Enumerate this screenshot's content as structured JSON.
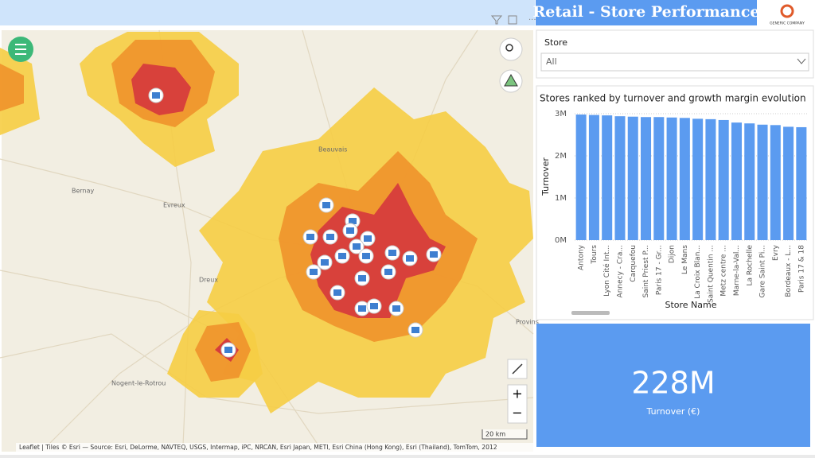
{
  "header": {
    "title": "Retail - Store Performance",
    "logo": "GENERIC COMPANY"
  },
  "slicer": {
    "label": "Store",
    "value": "All"
  },
  "map": {
    "places": [
      "Beauvais",
      "Evreux",
      "Bernay",
      "Nogent-le-Rotrou",
      "Provins",
      "Dreux"
    ],
    "scale": "20 km",
    "zoom_in": "+",
    "zoom_out": "−",
    "attribution": "Leaflet | Tiles © Esri — Source: Esri, DeLorme, NAVTEQ, USGS, Intermap, iPC, NRCAN, Esri Japan, METI, Esri China (Hong Kong), Esri (Thailand), TomTom, 2012"
  },
  "chart_data": {
    "type": "bar",
    "title": "Stores ranked by turnover and growth margin evolution",
    "x_label": "Store Name",
    "y_label": "Turnover",
    "categories": [
      "Antony",
      "Tours",
      "Lyon Cité Int...",
      "Annecy - Cra...",
      "Carquefou",
      "Saint Priest P...",
      "Paris 17 - Gr...",
      "Dijon",
      "Le Mans",
      "La Croix Blan...",
      "Saint Quentin ...",
      "Metz centre ...",
      "Marne-la-Val...",
      "La Rochelle",
      "Gare Saint Pi...",
      "Evry",
      "Bordeaux - L...",
      "Paris 17 & 18"
    ],
    "values": [
      2980000,
      2970000,
      2960000,
      2940000,
      2930000,
      2920000,
      2920000,
      2910000,
      2900000,
      2880000,
      2870000,
      2850000,
      2790000,
      2770000,
      2740000,
      2730000,
      2690000,
      2680000
    ],
    "color": "#5b9bf0",
    "ylim": [
      0,
      3000000
    ],
    "yticks": [
      {
        "value": 0,
        "label": "0M"
      },
      {
        "value": 1000000,
        "label": "1M"
      },
      {
        "value": 2000000,
        "label": "2M"
      },
      {
        "value": 3000000,
        "label": "3M"
      }
    ],
    "grid": true
  },
  "card": {
    "value": "228M",
    "label": "Turnover (€)"
  }
}
